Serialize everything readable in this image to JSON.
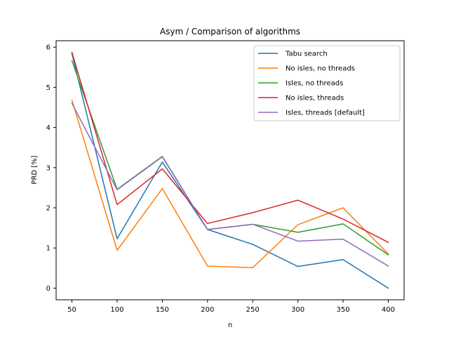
{
  "chart_data": {
    "type": "line",
    "title": "Asym / Comparison of algorithms",
    "xlabel": "n",
    "ylabel": "PRD [%]",
    "x": [
      50,
      100,
      150,
      200,
      250,
      300,
      350,
      400
    ],
    "xlim": [
      32.5,
      417.5
    ],
    "ylim": [
      -0.29,
      6.16
    ],
    "xticks": [
      50,
      100,
      150,
      200,
      250,
      300,
      350,
      400
    ],
    "yticks": [
      0,
      1,
      2,
      3,
      4,
      5,
      6
    ],
    "grid": false,
    "legend_position": "top-right",
    "series": [
      {
        "name": "Tabu search",
        "color": "#1f77b4",
        "values": [
          5.84,
          1.23,
          3.14,
          1.46,
          1.09,
          0.54,
          0.71,
          0.0
        ]
      },
      {
        "name": "No isles, no threads",
        "color": "#ff7f0e",
        "values": [
          4.68,
          0.94,
          2.48,
          0.55,
          0.51,
          1.58,
          2.0,
          0.85
        ]
      },
      {
        "name": "Isles, no threads",
        "color": "#2ca02c",
        "values": [
          5.66,
          2.46,
          3.28,
          1.46,
          1.59,
          1.39,
          1.6,
          0.83
        ]
      },
      {
        "name": "No isles, threads",
        "color": "#d62728",
        "values": [
          5.87,
          2.08,
          2.97,
          1.61,
          1.88,
          2.19,
          1.72,
          1.14
        ]
      },
      {
        "name": "Isles, threads [default]",
        "color": "#9467bd",
        "values": [
          4.6,
          2.45,
          3.27,
          1.46,
          1.59,
          1.17,
          1.22,
          0.55
        ]
      }
    ]
  }
}
